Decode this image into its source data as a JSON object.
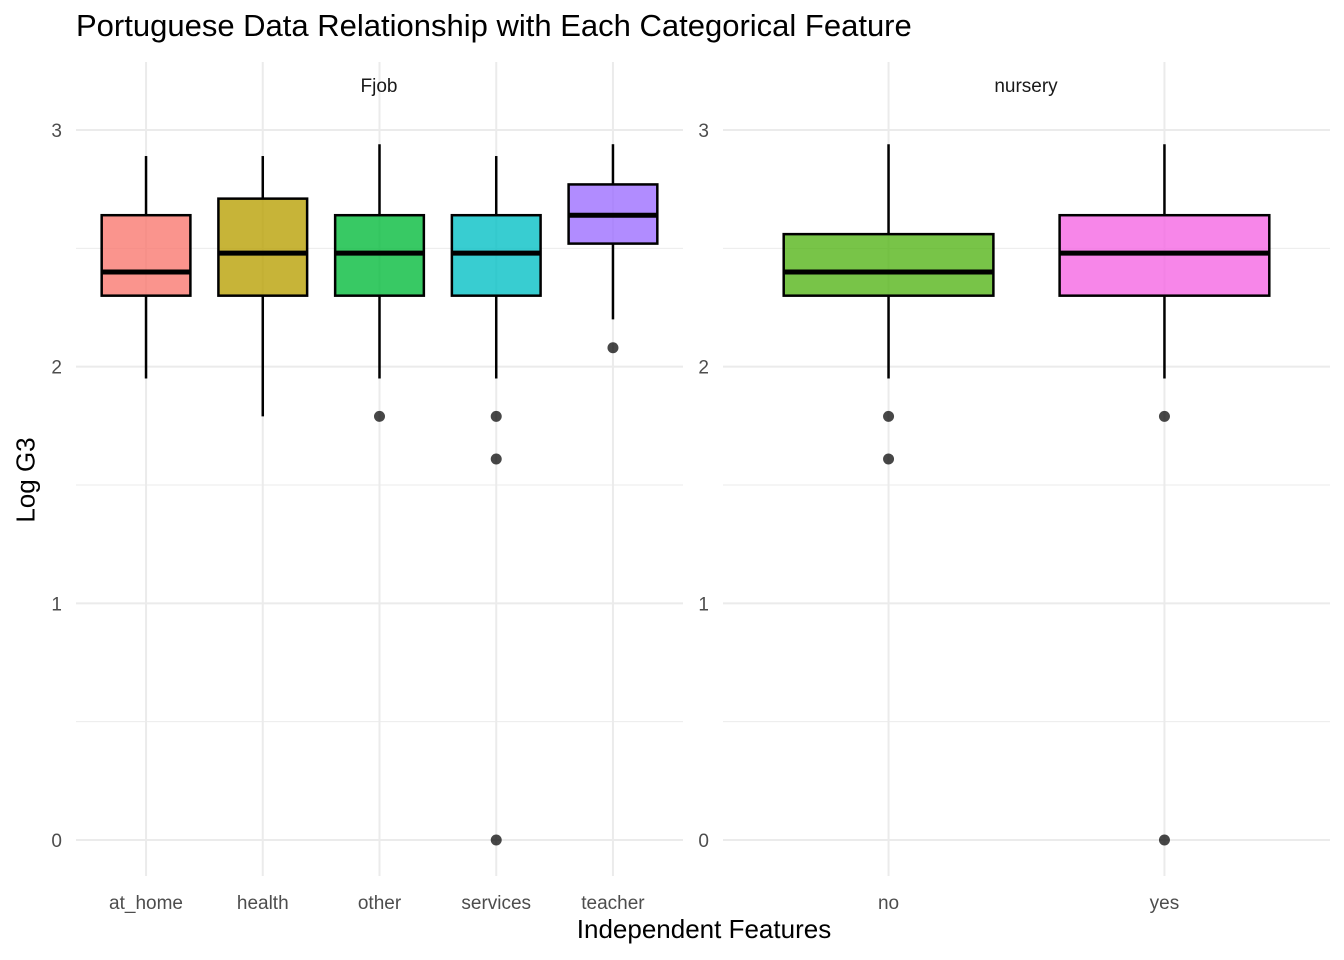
{
  "chart_data": {
    "type": "box",
    "title": "Portuguese Data Relationship with Each Categorical Feature",
    "xlabel": "Independent Features",
    "ylabel": "Log G3",
    "ylim": [
      -0.13,
      3.1
    ],
    "y_ticks": [
      0,
      1,
      2,
      3
    ],
    "grid": true,
    "legend": "none",
    "panels": [
      {
        "name": "Fjob",
        "categories": [
          "at_home",
          "health",
          "other",
          "services",
          "teacher"
        ],
        "boxes": [
          {
            "category": "at_home",
            "color": "#F8766D",
            "whisker_low": 1.95,
            "q1": 2.3,
            "median": 2.4,
            "q3": 2.64,
            "whisker_high": 2.89,
            "outliers": []
          },
          {
            "category": "health",
            "color": "#B79F00",
            "whisker_low": 1.79,
            "q1": 2.3,
            "median": 2.48,
            "q3": 2.71,
            "whisker_high": 2.89,
            "outliers": []
          },
          {
            "category": "other",
            "color": "#00BA38",
            "whisker_low": 1.95,
            "q1": 2.3,
            "median": 2.48,
            "q3": 2.64,
            "whisker_high": 2.94,
            "outliers": [
              1.79
            ]
          },
          {
            "category": "services",
            "color": "#00BFC4",
            "whisker_low": 1.95,
            "q1": 2.3,
            "median": 2.48,
            "q3": 2.64,
            "whisker_high": 2.89,
            "outliers": [
              1.79,
              1.61,
              0
            ]
          },
          {
            "category": "teacher",
            "color": "#9B6BFF",
            "whisker_low": 2.2,
            "q1": 2.52,
            "median": 2.64,
            "q3": 2.77,
            "whisker_high": 2.94,
            "outliers": [
              2.08
            ]
          }
        ]
      },
      {
        "name": "nursery",
        "categories": [
          "no",
          "yes"
        ],
        "boxes": [
          {
            "category": "no",
            "color": "#52B415",
            "whisker_low": 1.95,
            "q1": 2.3,
            "median": 2.4,
            "q3": 2.56,
            "whisker_high": 2.94,
            "outliers": [
              1.79,
              1.61
            ]
          },
          {
            "category": "yes",
            "color": "#F564E3",
            "whisker_low": 1.95,
            "q1": 2.3,
            "median": 2.48,
            "q3": 2.64,
            "whisker_high": 2.94,
            "outliers": [
              1.79,
              0
            ]
          }
        ]
      }
    ]
  }
}
